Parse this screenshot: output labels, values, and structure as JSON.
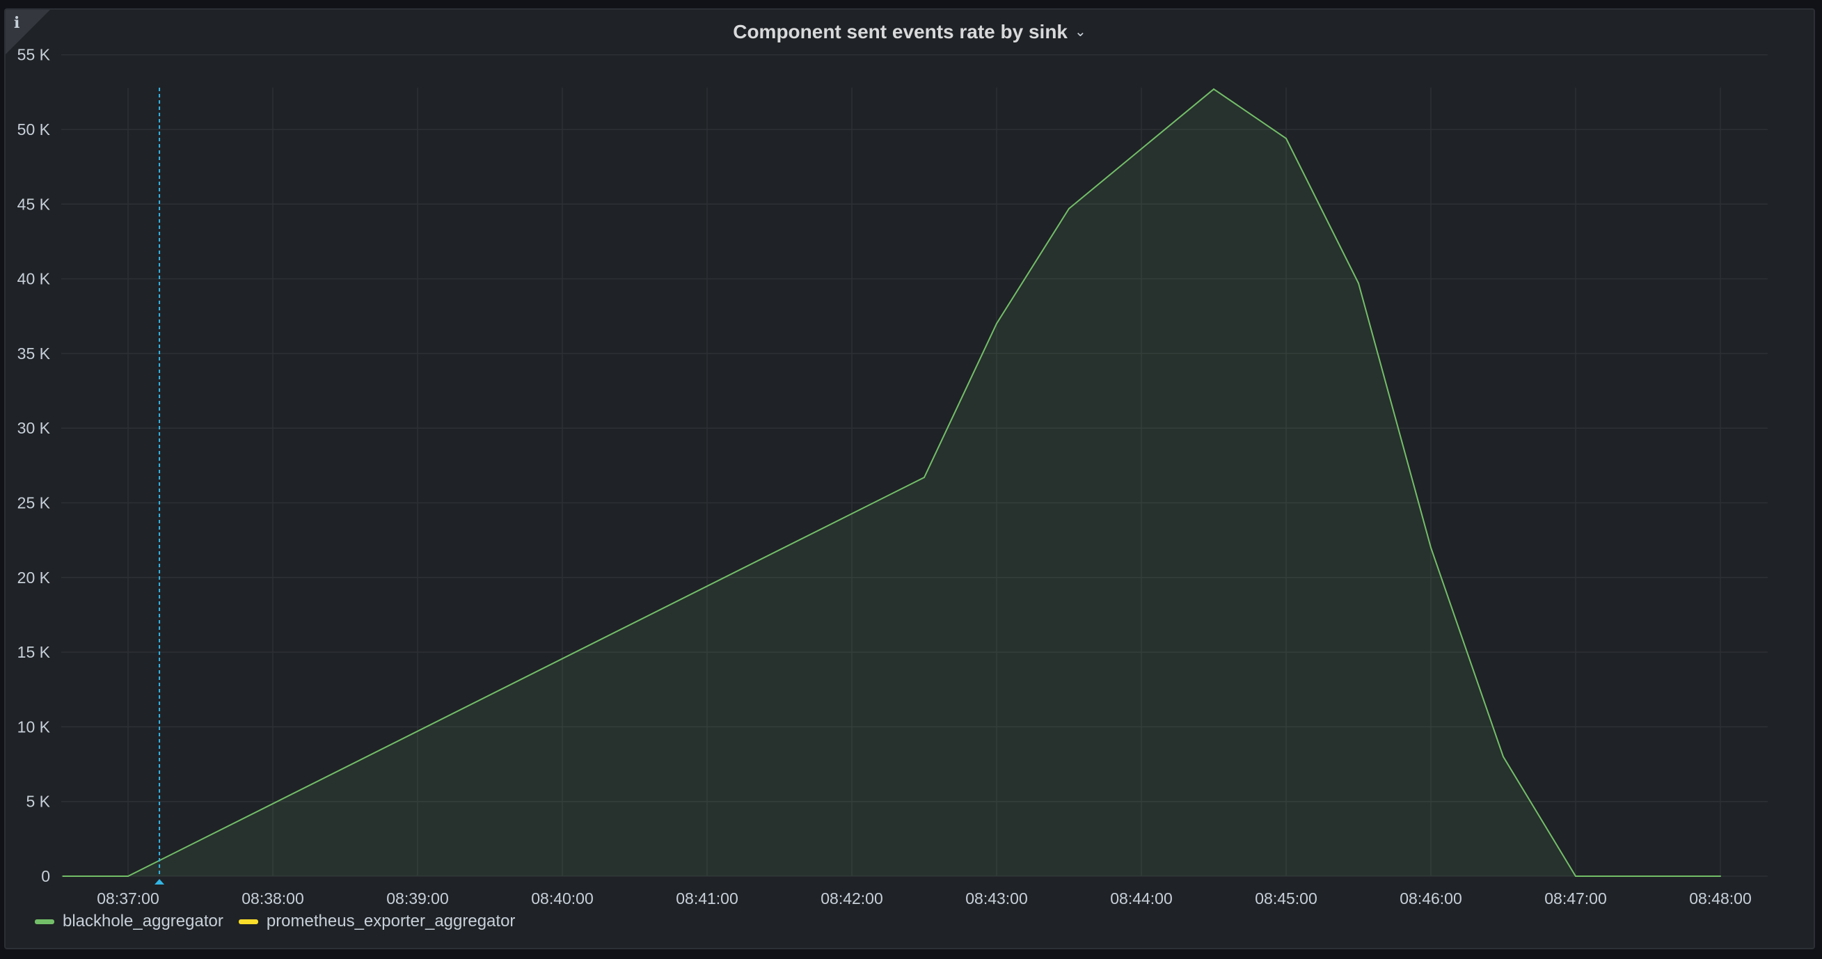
{
  "panel": {
    "title": "Component sent events rate by sink",
    "info_icon": "info-icon",
    "menu_icon": "chevron-down-icon"
  },
  "chart_data": {
    "type": "area",
    "title": "Component sent events rate by sink",
    "xlabel": "",
    "ylabel": "",
    "x_ticks": [
      "08:37:00",
      "08:38:00",
      "08:39:00",
      "08:40:00",
      "08:41:00",
      "08:42:00",
      "08:43:00",
      "08:44:00",
      "08:45:00",
      "08:46:00",
      "08:47:00",
      "08:48:00"
    ],
    "y_ticks": [
      "0",
      "5 K",
      "10 K",
      "15 K",
      "20 K",
      "25 K",
      "30 K",
      "35 K",
      "40 K",
      "45 K",
      "50 K",
      "55 K"
    ],
    "ylim": [
      0,
      57000
    ],
    "xlim": [
      "08:36:33",
      "08:48:31"
    ],
    "grid": true,
    "legend_position": "bottom-left",
    "series": [
      {
        "name": "blackhole_aggregator",
        "color": "#73bf69",
        "x": [
          "08:36:33",
          "08:37:00",
          "08:42:30",
          "08:43:00",
          "08:43:30",
          "08:44:30",
          "08:45:00",
          "08:45:30",
          "08:46:00",
          "08:46:30",
          "08:47:00",
          "08:48:00"
        ],
        "values": [
          0,
          0,
          26700,
          37000,
          44700,
          52700,
          49400,
          39700,
          22000,
          8000,
          0,
          0
        ]
      },
      {
        "name": "prometheus_exporter_aggregator",
        "color": "#fade2a",
        "x": [],
        "values": []
      }
    ],
    "cursor_time": "08:37:13",
    "cursor_color": "#33b5e5"
  }
}
